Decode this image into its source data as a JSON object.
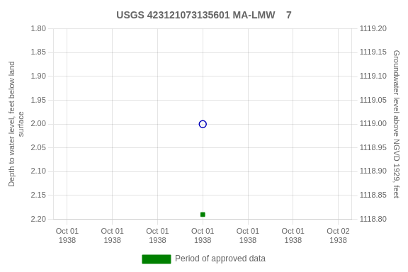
{
  "chart_data": {
    "type": "scatter",
    "title": "USGS 423121073135601 MA-LMW    7",
    "y_label": "Depth to water level, feet below land\nsurface",
    "y2_label": "Groundwater level above NGVD 1929, feet",
    "x": [
      0.5
    ],
    "series": [
      {
        "color": "#0000bb",
        "marker": "open_circle",
        "values": [
          2.0
        ]
      },
      {
        "name": "Period of approved data",
        "color": "#008000",
        "marker": "square",
        "values": [
          2.19
        ]
      }
    ],
    "xlim": [
      -0.05,
      1.05
    ],
    "xticks": [
      {
        "value": 0,
        "label": "Oct 01\n1938"
      },
      {
        "value": 0.16666666666666666,
        "label": "Oct 01\n1938"
      },
      {
        "value": 0.3333333333333333,
        "label": "Oct 01\n1938"
      },
      {
        "value": 0.5,
        "label": "Oct 01\n1938"
      },
      {
        "value": 0.6666666666666666,
        "label": "Oct 01\n1938"
      },
      {
        "value": 0.8333333333333334,
        "label": "Oct 01\n1938"
      },
      {
        "value": 1,
        "label": "Oct 02\n1938"
      }
    ],
    "ylim": [
      2.2,
      1.8
    ],
    "yticks": [
      {
        "value": 1.8,
        "label": "1.80"
      },
      1.85,
      {
        "value": 1.9,
        "label": "1.90"
      },
      1.95,
      {
        "value": 2.0,
        "label": "2.00"
      },
      2.05,
      {
        "value": 2.1,
        "label": "2.10"
      },
      2.15,
      {
        "value": 2.2,
        "label": "2.20"
      }
    ],
    "y2lim": [
      1118.8,
      1119.2
    ],
    "y2ticks": [
      {
        "value": 1119.2,
        "label": "1119.20"
      },
      1119.15,
      {
        "value": 1119.1,
        "label": "1119.10"
      },
      1119.05,
      {
        "value": 1119.0,
        "label": "1119.00"
      },
      1118.95,
      {
        "value": 1118.9,
        "label": "1118.90"
      },
      1118.85,
      {
        "value": 1118.8,
        "label": "1118.80"
      }
    ],
    "grid": true,
    "legend": "bottom"
  }
}
